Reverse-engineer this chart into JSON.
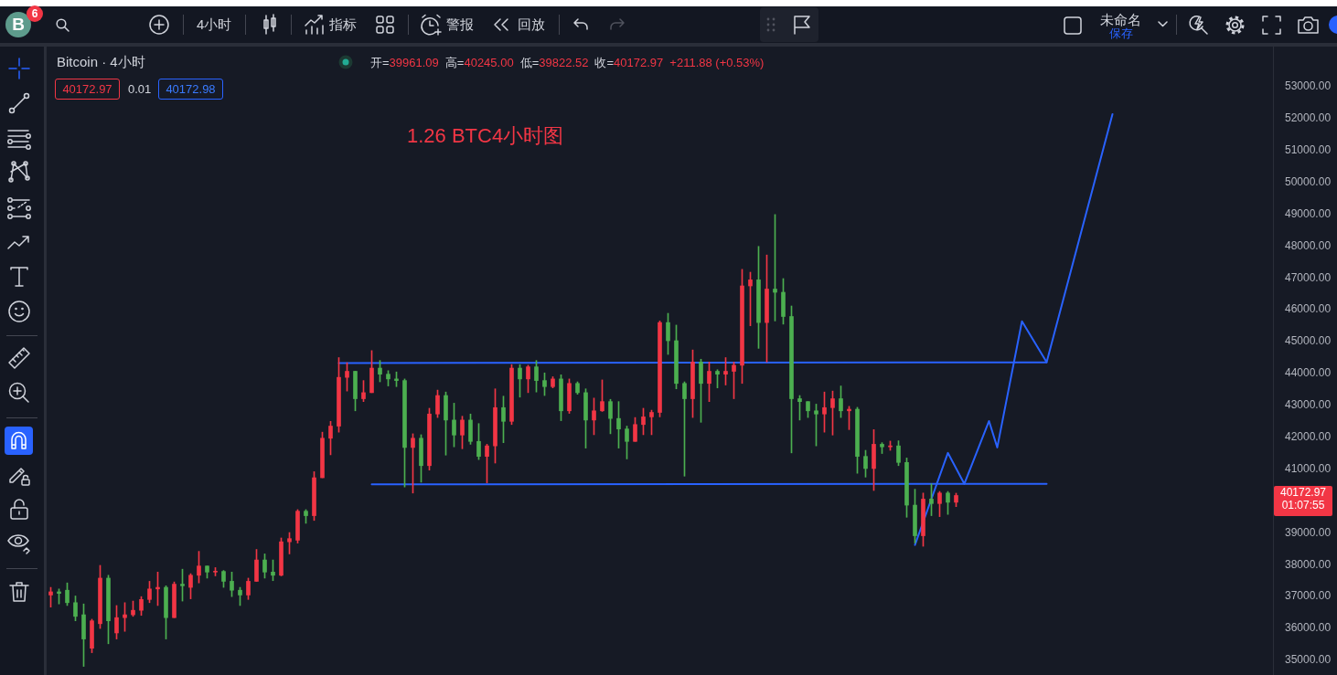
{
  "chart_data": {
    "type": "candlestick",
    "title": "1.26 BTC4小时图",
    "categories": [
      null,
      null,
      null,
      null,
      null,
      null,
      null,
      null,
      null,
      null,
      null,
      null,
      null,
      null,
      null,
      null,
      null,
      null,
      null,
      null,
      null,
      null,
      null,
      null,
      null,
      null,
      null,
      null,
      null,
      null,
      null,
      null,
      null,
      null,
      null,
      null,
      null,
      null,
      null,
      null,
      null,
      null,
      null,
      null,
      null,
      null,
      null,
      null,
      null,
      null,
      null,
      null,
      null,
      null,
      null,
      null,
      null,
      null,
      null,
      null,
      null,
      null,
      null,
      null,
      null,
      null,
      null,
      null,
      null,
      null,
      null,
      null,
      null,
      null,
      null,
      null,
      null,
      null,
      null,
      null,
      null,
      null,
      null,
      null,
      null,
      null,
      null,
      null,
      null,
      null,
      null,
      null,
      null,
      null,
      null,
      null,
      null,
      null,
      null,
      null,
      null,
      null,
      null,
      null,
      null,
      null,
      null,
      null,
      null,
      null,
      null,
      null,
      null,
      null,
      null,
      null,
      null,
      null,
      null,
      null,
      null,
      null,
      null,
      null,
      null,
      null,
      null,
      null,
      null,
      null,
      null,
      null,
      null,
      null,
      null,
      null,
      null,
      null,
      null,
      null,
      null,
      null,
      null,
      null,
      null,
      null,
      null,
      null,
      null
    ],
    "series": [
      {
        "ohlc": [
          [
            37050,
            37290,
            36670,
            37150
          ],
          [
            37150,
            37240,
            36770,
            37100
          ],
          [
            37200,
            37430,
            36720,
            36810
          ],
          [
            36810,
            37020,
            36240,
            36380
          ],
          [
            36430,
            36770,
            34810,
            35670
          ],
          [
            35380,
            36290,
            35240,
            36240
          ],
          [
            36150,
            37980,
            36000,
            37580
          ],
          [
            37580,
            37670,
            35520,
            36240
          ],
          [
            35860,
            36720,
            35670,
            36340
          ],
          [
            36340,
            36810,
            35910,
            36430
          ],
          [
            36430,
            36860,
            36380,
            36570
          ],
          [
            36570,
            37000,
            36410,
            36910
          ],
          [
            36910,
            37480,
            36810,
            37240
          ],
          [
            37240,
            37770,
            36720,
            37290
          ],
          [
            37290,
            37340,
            35670,
            36340
          ],
          [
            36340,
            37460,
            36340,
            37390
          ],
          [
            37390,
            37860,
            36860,
            37340
          ],
          [
            37290,
            37720,
            36930,
            37670
          ],
          [
            37670,
            38420,
            37430,
            37960
          ],
          [
            37960,
            37960,
            37580,
            37770
          ],
          [
            37770,
            37910,
            37650,
            37790
          ],
          [
            37790,
            37820,
            37290,
            37480
          ],
          [
            37480,
            37770,
            37000,
            37200
          ],
          [
            37200,
            37290,
            36720,
            37050
          ],
          [
            37050,
            37580,
            36910,
            37480
          ],
          [
            37480,
            38480,
            37480,
            38150
          ],
          [
            38150,
            38340,
            37580,
            37770
          ],
          [
            37770,
            38150,
            37500,
            37670
          ],
          [
            37670,
            38840,
            37650,
            38720
          ],
          [
            38720,
            39010,
            38340,
            38820
          ],
          [
            38770,
            39730,
            38680,
            39680
          ],
          [
            39680,
            39730,
            39300,
            39540
          ],
          [
            39540,
            40920,
            39390,
            40730
          ],
          [
            40730,
            42160,
            40730,
            41970
          ],
          [
            41970,
            42500,
            41450,
            42350
          ],
          [
            42350,
            44500,
            42160,
            43880
          ],
          [
            43880,
            44340,
            43450,
            44070
          ],
          [
            44070,
            44070,
            42830,
            43210
          ],
          [
            43210,
            43780,
            43120,
            43400
          ],
          [
            43400,
            44720,
            43400,
            44170
          ],
          [
            44170,
            44410,
            43740,
            43980
          ],
          [
            43980,
            44090,
            43610,
            43830
          ],
          [
            43830,
            44050,
            43590,
            43780
          ],
          [
            43780,
            43830,
            40440,
            41680
          ],
          [
            41680,
            42110,
            40250,
            41970
          ],
          [
            41970,
            42080,
            40590,
            41110
          ],
          [
            41110,
            42910,
            40970,
            42730
          ],
          [
            42730,
            43480,
            42620,
            43310
          ],
          [
            43310,
            43420,
            41440,
            42540
          ],
          [
            42540,
            43070,
            41700,
            42070
          ],
          [
            42070,
            42660,
            41640,
            42540
          ],
          [
            42540,
            42730,
            41780,
            41870
          ],
          [
            41870,
            42430,
            41300,
            41400
          ],
          [
            41400,
            41780,
            40570,
            41730
          ],
          [
            41730,
            43520,
            41190,
            42930
          ],
          [
            42930,
            43290,
            41830,
            42500
          ],
          [
            42500,
            44280,
            42400,
            44170
          ],
          [
            44170,
            44280,
            43260,
            43830
          ],
          [
            43830,
            44260,
            43400,
            44210
          ],
          [
            44210,
            44410,
            43420,
            43780
          ],
          [
            43780,
            44020,
            43310,
            43590
          ],
          [
            43590,
            43900,
            43550,
            43830
          ],
          [
            43830,
            43960,
            42520,
            42830
          ],
          [
            42830,
            43830,
            42750,
            43690
          ],
          [
            43690,
            43740,
            43350,
            43400
          ],
          [
            43400,
            43520,
            41660,
            42540
          ],
          [
            42540,
            43230,
            42080,
            42830
          ],
          [
            42830,
            43800,
            42810,
            43120
          ],
          [
            43120,
            43190,
            42110,
            42590
          ],
          [
            42590,
            43120,
            41660,
            42260
          ],
          [
            42260,
            42350,
            41320,
            41870
          ],
          [
            41870,
            42620,
            41870,
            42400
          ],
          [
            42400,
            42910,
            42080,
            42640
          ],
          [
            42640,
            42850,
            42080,
            42780
          ],
          [
            42780,
            45650,
            42640,
            45600
          ],
          [
            45600,
            45890,
            44600,
            45030
          ],
          [
            45030,
            45520,
            43520,
            43690
          ],
          [
            43690,
            43740,
            40780,
            43210
          ],
          [
            43210,
            44740,
            42620,
            44360
          ],
          [
            44360,
            44450,
            42470,
            43690
          ],
          [
            43690,
            44360,
            43120,
            44070
          ],
          [
            44070,
            44120,
            43550,
            43980
          ],
          [
            43980,
            44500,
            43640,
            44070
          ],
          [
            44070,
            44360,
            43210,
            44260
          ],
          [
            44260,
            47270,
            43690,
            46750
          ],
          [
            46750,
            47180,
            45500,
            46940
          ],
          [
            46940,
            47990,
            44790,
            45600
          ],
          [
            45600,
            47720,
            44360,
            46650
          ],
          [
            46650,
            48990,
            45650,
            46550
          ],
          [
            46550,
            46980,
            45550,
            45790
          ],
          [
            45790,
            46120,
            41510,
            43210
          ],
          [
            43210,
            43310,
            42540,
            43120
          ],
          [
            43120,
            43120,
            42620,
            42830
          ],
          [
            42830,
            43040,
            41730,
            42730
          ],
          [
            42730,
            43420,
            42160,
            42930
          ],
          [
            42930,
            43450,
            42070,
            43210
          ],
          [
            43210,
            43610,
            42620,
            42830
          ],
          [
            42830,
            42970,
            42240,
            42880
          ],
          [
            42880,
            42940,
            40870,
            41400
          ],
          [
            41400,
            41590,
            40750,
            41020
          ],
          [
            41020,
            42240,
            40330,
            41780
          ],
          [
            41780,
            41830,
            41490,
            41700
          ],
          [
            41700,
            41880,
            41590,
            41730
          ],
          [
            41730,
            41890,
            41110,
            41210
          ],
          [
            41210,
            41350,
            39490,
            39870
          ],
          [
            39870,
            40370,
            38680,
            38910
          ],
          [
            38910,
            40250,
            38580,
            40060
          ],
          [
            40060,
            40540,
            39540,
            39920
          ],
          [
            39920,
            40300,
            39510,
            40250
          ],
          [
            40250,
            40300,
            39580,
            39960
          ],
          [
            39961.09,
            40245.0,
            39822.52,
            40172.97
          ],
          null,
          null,
          null,
          null,
          null,
          null,
          null,
          null,
          null,
          null,
          null,
          null,
          null,
          null,
          null,
          null,
          null,
          null,
          null,
          null,
          null,
          null,
          null,
          null,
          null,
          null,
          null,
          null,
          null,
          null,
          null,
          null,
          null,
          null,
          null,
          null,
          null,
          null
        ],
        "colors": [
          "#f23645",
          "#4caf50",
          "#4caf50",
          "#4caf50",
          "#4caf50",
          "#f23645",
          "#f23645",
          "#4caf50",
          "#f23645",
          "#f23645",
          "#f23645",
          "#f23645",
          "#f23645",
          "#f23645",
          "#4caf50",
          "#f23645",
          "#4caf50",
          "#f23645",
          "#f23645",
          "#4caf50",
          "#f23645",
          "#4caf50",
          "#4caf50",
          "#4caf50",
          "#f23645",
          "#f23645",
          "#4caf50",
          "#4caf50",
          "#f23645",
          "#f23645",
          "#f23645",
          "#4caf50",
          "#f23645",
          "#f23645",
          "#f23645",
          "#f23645",
          "#f23645",
          "#4caf50",
          "#f23645",
          "#f23645",
          "#4caf50",
          "#4caf50",
          "#4caf50",
          "#4caf50",
          "#f23645",
          "#4caf50",
          "#f23645",
          "#f23645",
          "#4caf50",
          "#4caf50",
          "#f23645",
          "#4caf50",
          "#4caf50",
          "#f23645",
          "#f23645",
          "#4caf50",
          "#f23645",
          "#4caf50",
          "#f23645",
          "#4caf50",
          "#4caf50",
          "#f23645",
          "#4caf50",
          "#f23645",
          "#4caf50",
          "#4caf50",
          "#f23645",
          "#f23645",
          "#4caf50",
          "#4caf50",
          "#4caf50",
          "#f23645",
          "#f23645",
          "#f23645",
          "#f23645",
          "#4caf50",
          "#4caf50",
          "#4caf50",
          "#f23645",
          "#4caf50",
          "#f23645",
          "#4caf50",
          "#f23645",
          "#f23645",
          "#f23645",
          "#f23645",
          "#4caf50",
          "#f23645",
          "#4caf50",
          "#4caf50",
          "#4caf50",
          "#4caf50",
          "#4caf50",
          "#4caf50",
          "#f23645",
          "#f23645",
          "#4caf50",
          "#f23645",
          "#4caf50",
          "#4caf50",
          "#f23645",
          "#4caf50",
          "#f23645",
          "#4caf50",
          "#4caf50",
          "#4caf50",
          "#f23645",
          "#4caf50",
          "#f23645",
          "#4caf50",
          "#f23645",
          null,
          null,
          null,
          null,
          null,
          null,
          null,
          null,
          null,
          null,
          null,
          null,
          null,
          null,
          null,
          null,
          null,
          null,
          null,
          null,
          null,
          null,
          null,
          null,
          null,
          null,
          null,
          null,
          null,
          null,
          null,
          null,
          null,
          null,
          null,
          null,
          null,
          null
        ]
      },
      {
        "type": "line",
        "color": "#2962ff",
        "values": [
          null,
          null,
          null,
          null,
          null,
          null,
          null,
          null,
          null,
          null,
          null,
          null,
          null,
          null,
          null,
          null,
          null,
          null,
          null,
          null,
          null,
          null,
          null,
          null,
          null,
          null,
          null,
          null,
          null,
          null,
          null,
          null,
          null,
          null,
          null,
          44330,
          null,
          null,
          null,
          null,
          null,
          null,
          null,
          null,
          null,
          null,
          null,
          null,
          null,
          null,
          null,
          null,
          null,
          null,
          null,
          null,
          null,
          null,
          null,
          null,
          null,
          null,
          null,
          null,
          null,
          null,
          null,
          null,
          null,
          null,
          null,
          null,
          null,
          null,
          null,
          null,
          null,
          null,
          null,
          null,
          null,
          null,
          null,
          null,
          null,
          null,
          null,
          null,
          null,
          null,
          null,
          null,
          null,
          null,
          null,
          null,
          null,
          null,
          null,
          null,
          null,
          null,
          null,
          null,
          null,
          null,
          null,
          null,
          null,
          null,
          null,
          null,
          null,
          null,
          null,
          null,
          null,
          null,
          null,
          null,
          null,
          44350,
          null,
          null,
          null,
          null,
          null,
          null,
          null,
          null,
          null,
          null,
          null,
          null,
          null,
          null,
          null,
          null,
          null,
          null,
          null,
          null,
          null,
          null,
          null,
          null,
          null,
          null,
          null
        ]
      },
      {
        "type": "line",
        "color": "#2962ff",
        "values": [
          null,
          null,
          null,
          null,
          null,
          null,
          null,
          null,
          null,
          null,
          null,
          null,
          null,
          null,
          null,
          null,
          null,
          null,
          null,
          null,
          null,
          null,
          null,
          null,
          null,
          null,
          null,
          null,
          null,
          null,
          null,
          null,
          null,
          null,
          null,
          null,
          null,
          null,
          null,
          40520,
          null,
          null,
          null,
          null,
          null,
          null,
          null,
          null,
          null,
          null,
          null,
          null,
          null,
          null,
          null,
          null,
          null,
          null,
          null,
          null,
          null,
          null,
          null,
          null,
          null,
          null,
          null,
          null,
          null,
          null,
          null,
          null,
          null,
          null,
          null,
          null,
          null,
          null,
          null,
          null,
          null,
          null,
          null,
          null,
          null,
          null,
          null,
          null,
          null,
          null,
          null,
          null,
          null,
          null,
          null,
          null,
          null,
          null,
          null,
          null,
          null,
          null,
          null,
          null,
          null,
          null,
          null,
          null,
          null,
          null,
          null,
          null,
          null,
          null,
          null,
          null,
          null,
          null,
          null,
          null,
          null,
          40540,
          null,
          null,
          null,
          null,
          null,
          null,
          null,
          null,
          null,
          null,
          null,
          null,
          null,
          null,
          null,
          null,
          null,
          null,
          null,
          null,
          null,
          null,
          null,
          null,
          null,
          null,
          null
        ]
      },
      {
        "type": "line",
        "color": "#2962ff",
        "values": [
          null,
          null,
          null,
          null,
          null,
          null,
          null,
          null,
          null,
          null,
          null,
          null,
          null,
          null,
          null,
          null,
          null,
          null,
          null,
          null,
          null,
          null,
          null,
          null,
          null,
          null,
          null,
          null,
          null,
          null,
          null,
          null,
          null,
          null,
          null,
          null,
          null,
          null,
          null,
          null,
          null,
          null,
          null,
          null,
          null,
          null,
          null,
          null,
          null,
          null,
          null,
          null,
          null,
          null,
          null,
          null,
          null,
          null,
          null,
          null,
          null,
          null,
          null,
          null,
          null,
          null,
          null,
          null,
          null,
          null,
          null,
          null,
          null,
          null,
          null,
          null,
          null,
          null,
          null,
          null,
          null,
          null,
          null,
          null,
          null,
          null,
          null,
          null,
          null,
          null,
          null,
          null,
          null,
          null,
          null,
          null,
          null,
          null,
          null,
          null,
          null,
          null,
          null,
          null,
          null,
          38620,
          null,
          null,
          null,
          41510,
          null,
          40540,
          null,
          null,
          42510,
          41680,
          null,
          null,
          45640,
          null,
          null,
          44360,
          null,
          null,
          null,
          null,
          null,
          null,
          null,
          52140,
          null,
          null,
          null,
          null,
          null,
          null,
          null,
          null,
          null,
          null,
          null,
          null,
          null,
          null,
          null,
          null,
          null,
          null,
          null
        ]
      }
    ],
    "ylim": [
      34540,
      54260
    ],
    "yticks": [
      {
        "value": 35000,
        "label": "35000.00"
      },
      {
        "value": 36000,
        "label": "36000.00"
      },
      {
        "value": 37000,
        "label": "37000.00"
      },
      {
        "value": 38000,
        "label": "38000.00"
      },
      {
        "value": 39000,
        "label": "39000.00"
      },
      {
        "value": 41000,
        "label": "41000.00"
      },
      {
        "value": 42000,
        "label": "42000.00"
      },
      {
        "value": 43000,
        "label": "43000.00"
      },
      {
        "value": 44000,
        "label": "44000.00"
      },
      {
        "value": 45000,
        "label": "45000.00"
      },
      {
        "value": 46000,
        "label": "46000.00"
      },
      {
        "value": 47000,
        "label": "47000.00"
      },
      {
        "value": 48000,
        "label": "48000.00"
      },
      {
        "value": 49000,
        "label": "49000.00"
      },
      {
        "value": 50000,
        "label": "50000.00"
      },
      {
        "value": 51000,
        "label": "51000.00"
      },
      {
        "value": 52000,
        "label": "52000.00"
      },
      {
        "value": 53000,
        "label": "53000.00"
      }
    ],
    "tick_labels": "y",
    "annotations": [
      "B",
      "6",
      "4小时",
      "指标",
      "警报",
      "回放",
      "未命名",
      "保存",
      "Bitcoin · 4小时",
      "开=",
      "39961.09",
      "高=",
      "40245.00",
      "低=",
      "39822.52",
      "收=",
      "40172.97",
      "+211.88 (+0.53%)",
      "40172.97",
      "0.01",
      "40172.98",
      "40172.97",
      "01:07:55"
    ]
  }
}
